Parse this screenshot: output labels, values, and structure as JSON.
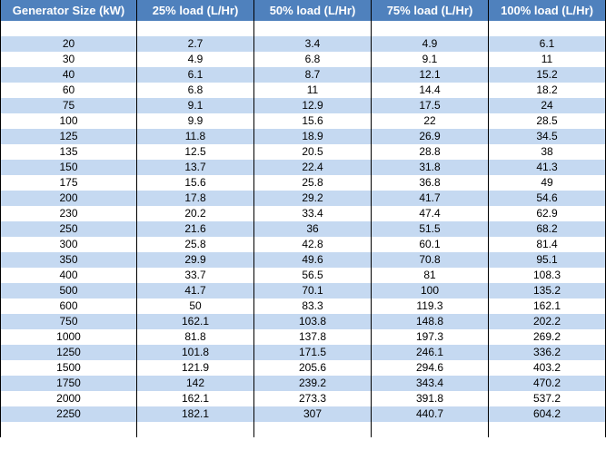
{
  "headers": [
    "Generator Size (kW)",
    "25% load (L/Hr)",
    "50% load (L/Hr)",
    "75% load (L/Hr)",
    "100% load (L/Hr)"
  ],
  "rows": [
    [
      "",
      "",
      "",
      "",
      ""
    ],
    [
      "20",
      "2.7",
      "3.4",
      "4.9",
      "6.1"
    ],
    [
      "30",
      "4.9",
      "6.8",
      "9.1",
      "11"
    ],
    [
      "40",
      "6.1",
      "8.7",
      "12.1",
      "15.2"
    ],
    [
      "60",
      "6.8",
      "11",
      "14.4",
      "18.2"
    ],
    [
      "75",
      "9.1",
      "12.9",
      "17.5",
      "24"
    ],
    [
      "100",
      "9.9",
      "15.6",
      "22",
      "28.5"
    ],
    [
      "125",
      "11.8",
      "18.9",
      "26.9",
      "34.5"
    ],
    [
      "135",
      "12.5",
      "20.5",
      "28.8",
      "38"
    ],
    [
      "150",
      "13.7",
      "22.4",
      "31.8",
      "41.3"
    ],
    [
      "175",
      "15.6",
      "25.8",
      "36.8",
      "49"
    ],
    [
      "200",
      "17.8",
      "29.2",
      "41.7",
      "54.6"
    ],
    [
      "230",
      "20.2",
      "33.4",
      "47.4",
      "62.9"
    ],
    [
      "250",
      "21.6",
      "36",
      "51.5",
      "68.2"
    ],
    [
      "300",
      "25.8",
      "42.8",
      "60.1",
      "81.4"
    ],
    [
      "350",
      "29.9",
      "49.6",
      "70.8",
      "95.1"
    ],
    [
      "400",
      "33.7",
      "56.5",
      "81",
      "108.3"
    ],
    [
      "500",
      "41.7",
      "70.1",
      "100",
      "135.2"
    ],
    [
      "600",
      "50",
      "83.3",
      "119.3",
      "162.1"
    ],
    [
      "750",
      "162.1",
      "103.8",
      "148.8",
      "202.2"
    ],
    [
      "1000",
      "81.8",
      "137.8",
      "197.3",
      "269.2"
    ],
    [
      "1250",
      "101.8",
      "171.5",
      "246.1",
      "336.2"
    ],
    [
      "1500",
      "121.9",
      "205.6",
      "294.6",
      "403.2"
    ],
    [
      "1750",
      "142",
      "239.2",
      "343.4",
      "470.2"
    ],
    [
      "2000",
      "162.1",
      "273.3",
      "391.8",
      "537.2"
    ],
    [
      "2250",
      "182.1",
      "307",
      "440.7",
      "604.2"
    ],
    [
      "",
      "",
      "",
      "",
      ""
    ]
  ],
  "colors": {
    "header_bg": "#4f81bd",
    "header_text": "#ffffff",
    "band_blue": "#c5d9f1",
    "band_white": "#ffffff"
  }
}
